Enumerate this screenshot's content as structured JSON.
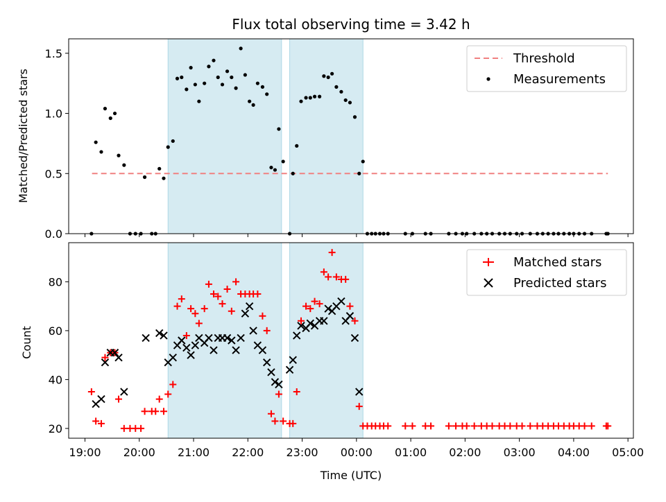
{
  "chart_data": [
    {
      "type": "scatter",
      "panel": "top",
      "title": "Flux total observing time = 3.42 h",
      "xlabel": "",
      "ylabel": "Matched/Predicted stars",
      "xlim_hours": [
        18.7,
        29.1
      ],
      "ylim": [
        0,
        1.62
      ],
      "yticks": [
        0.0,
        0.5,
        1.0,
        1.5
      ],
      "ytick_labels": [
        "0.0",
        "0.5",
        "1.0",
        "1.5"
      ],
      "threshold": {
        "label": "Threshold",
        "value": 0.5,
        "x_range_hours": [
          19.13,
          28.63
        ],
        "color": "#f08080"
      },
      "shaded_intervals_hours": [
        [
          20.53,
          22.62
        ],
        [
          22.77,
          24.12
        ]
      ],
      "legend": {
        "position": "upper right",
        "entries": [
          "Threshold",
          "Measurements"
        ]
      },
      "measurements_label": "Measurements",
      "measurements": [
        [
          19.12,
          0.0
        ],
        [
          19.2,
          0.76
        ],
        [
          19.3,
          0.68
        ],
        [
          19.37,
          1.04
        ],
        [
          19.47,
          0.96
        ],
        [
          19.55,
          1.0
        ],
        [
          19.62,
          0.65
        ],
        [
          19.72,
          0.57
        ],
        [
          19.83,
          0.0
        ],
        [
          19.93,
          0.0
        ],
        [
          20.03,
          0.0
        ],
        [
          20.1,
          0.47
        ],
        [
          20.23,
          0.0
        ],
        [
          20.3,
          0.0
        ],
        [
          20.37,
          0.54
        ],
        [
          20.45,
          0.46
        ],
        [
          20.53,
          0.72
        ],
        [
          20.62,
          0.77
        ],
        [
          20.7,
          1.29
        ],
        [
          20.78,
          1.3
        ],
        [
          20.87,
          1.2
        ],
        [
          20.95,
          1.38
        ],
        [
          21.03,
          1.24
        ],
        [
          21.1,
          1.1
        ],
        [
          21.2,
          1.25
        ],
        [
          21.28,
          1.39
        ],
        [
          21.37,
          1.44
        ],
        [
          21.45,
          1.3
        ],
        [
          21.53,
          1.24
        ],
        [
          21.62,
          1.35
        ],
        [
          21.7,
          1.3
        ],
        [
          21.78,
          1.21
        ],
        [
          21.87,
          1.54
        ],
        [
          21.95,
          1.32
        ],
        [
          22.03,
          1.1
        ],
        [
          22.1,
          1.07
        ],
        [
          22.18,
          1.25
        ],
        [
          22.27,
          1.22
        ],
        [
          22.35,
          1.16
        ],
        [
          22.43,
          0.55
        ],
        [
          22.5,
          0.53
        ],
        [
          22.57,
          0.87
        ],
        [
          22.65,
          0.6
        ],
        [
          22.77,
          0.0
        ],
        [
          22.83,
          0.5
        ],
        [
          22.9,
          0.73
        ],
        [
          22.98,
          1.1
        ],
        [
          23.07,
          1.13
        ],
        [
          23.15,
          1.13
        ],
        [
          23.23,
          1.14
        ],
        [
          23.32,
          1.14
        ],
        [
          23.4,
          1.31
        ],
        [
          23.48,
          1.3
        ],
        [
          23.55,
          1.33
        ],
        [
          23.63,
          1.22
        ],
        [
          23.72,
          1.18
        ],
        [
          23.8,
          1.11
        ],
        [
          23.88,
          1.09
        ],
        [
          23.97,
          0.97
        ],
        [
          24.05,
          0.5
        ],
        [
          24.12,
          0.6
        ],
        [
          24.2,
          0.0
        ],
        [
          24.28,
          0.0
        ],
        [
          24.35,
          0.0
        ],
        [
          24.43,
          0.0
        ],
        [
          24.5,
          0.0
        ],
        [
          24.58,
          0.0
        ],
        [
          24.9,
          0.0
        ],
        [
          25.03,
          0.0
        ],
        [
          25.27,
          0.0
        ],
        [
          25.37,
          0.0
        ],
        [
          25.7,
          0.0
        ],
        [
          25.83,
          0.0
        ],
        [
          25.95,
          0.0
        ],
        [
          26.03,
          0.0
        ],
        [
          26.17,
          0.0
        ],
        [
          26.3,
          0.0
        ],
        [
          26.4,
          0.0
        ],
        [
          26.5,
          0.0
        ],
        [
          26.63,
          0.0
        ],
        [
          26.73,
          0.0
        ],
        [
          26.83,
          0.0
        ],
        [
          26.95,
          0.0
        ],
        [
          27.05,
          0.0
        ],
        [
          27.2,
          0.0
        ],
        [
          27.33,
          0.0
        ],
        [
          27.43,
          0.0
        ],
        [
          27.53,
          0.0
        ],
        [
          27.63,
          0.0
        ],
        [
          27.72,
          0.0
        ],
        [
          27.82,
          0.0
        ],
        [
          27.92,
          0.0
        ],
        [
          28.0,
          0.0
        ],
        [
          28.1,
          0.0
        ],
        [
          28.2,
          0.0
        ],
        [
          28.33,
          0.0
        ],
        [
          28.6,
          0.0
        ],
        [
          28.63,
          0.0
        ]
      ]
    },
    {
      "type": "scatter",
      "panel": "bottom",
      "title": "",
      "xlabel": "Time (UTC)",
      "ylabel": "Count",
      "xlim_hours": [
        18.7,
        29.1
      ],
      "ylim": [
        16,
        96
      ],
      "yticks": [
        20,
        40,
        60,
        80
      ],
      "ytick_labels": [
        "20",
        "40",
        "60",
        "80"
      ],
      "xticks_hours": [
        19,
        20,
        21,
        22,
        23,
        24,
        25,
        26,
        27,
        28,
        29
      ],
      "xtick_labels": [
        "19:00",
        "20:00",
        "21:00",
        "22:00",
        "23:00",
        "00:00",
        "01:00",
        "02:00",
        "03:00",
        "04:00",
        "05:00"
      ],
      "shaded_intervals_hours": [
        [
          20.53,
          22.62
        ],
        [
          22.77,
          24.12
        ]
      ],
      "legend": {
        "position": "upper right",
        "entries": [
          "Matched stars",
          "Predicted stars"
        ]
      },
      "series": [
        {
          "name": "Matched stars",
          "marker": "plus",
          "color": "#ff0000",
          "points": [
            [
              19.12,
              35
            ],
            [
              19.2,
              23
            ],
            [
              19.3,
              22
            ],
            [
              19.37,
              49
            ],
            [
              19.47,
              51
            ],
            [
              19.55,
              51
            ],
            [
              19.62,
              32
            ],
            [
              19.72,
              20
            ],
            [
              19.83,
              20
            ],
            [
              19.93,
              20
            ],
            [
              20.03,
              20
            ],
            [
              20.1,
              27
            ],
            [
              20.23,
              27
            ],
            [
              20.3,
              27
            ],
            [
              20.37,
              32
            ],
            [
              20.45,
              27
            ],
            [
              20.53,
              34
            ],
            [
              20.62,
              38
            ],
            [
              20.7,
              70
            ],
            [
              20.78,
              73
            ],
            [
              20.87,
              58
            ],
            [
              20.95,
              69
            ],
            [
              21.03,
              67
            ],
            [
              21.1,
              63
            ],
            [
              21.2,
              69
            ],
            [
              21.28,
              79
            ],
            [
              21.37,
              75
            ],
            [
              21.45,
              74
            ],
            [
              21.53,
              71
            ],
            [
              21.62,
              77
            ],
            [
              21.7,
              68
            ],
            [
              21.78,
              80
            ],
            [
              21.87,
              75
            ],
            [
              21.95,
              75
            ],
            [
              22.03,
              75
            ],
            [
              22.1,
              75
            ],
            [
              22.18,
              75
            ],
            [
              22.27,
              66
            ],
            [
              22.35,
              60
            ],
            [
              22.43,
              26
            ],
            [
              22.5,
              23
            ],
            [
              22.57,
              34
            ],
            [
              22.65,
              23
            ],
            [
              22.77,
              22
            ],
            [
              22.83,
              22
            ],
            [
              22.9,
              35
            ],
            [
              22.98,
              64
            ],
            [
              23.07,
              70
            ],
            [
              23.15,
              69
            ],
            [
              23.23,
              72
            ],
            [
              23.32,
              71
            ],
            [
              23.4,
              84
            ],
            [
              23.48,
              82
            ],
            [
              23.55,
              92
            ],
            [
              23.63,
              82
            ],
            [
              23.72,
              81
            ],
            [
              23.8,
              81
            ],
            [
              23.88,
              70
            ],
            [
              23.97,
              64
            ],
            [
              24.05,
              29
            ],
            [
              24.12,
              21
            ],
            [
              24.2,
              21
            ],
            [
              24.28,
              21
            ],
            [
              24.35,
              21
            ],
            [
              24.43,
              21
            ],
            [
              24.5,
              21
            ],
            [
              24.58,
              21
            ],
            [
              24.9,
              21
            ],
            [
              25.03,
              21
            ],
            [
              25.27,
              21
            ],
            [
              25.37,
              21
            ],
            [
              25.7,
              21
            ],
            [
              25.83,
              21
            ],
            [
              25.95,
              21
            ],
            [
              26.03,
              21
            ],
            [
              26.17,
              21
            ],
            [
              26.3,
              21
            ],
            [
              26.4,
              21
            ],
            [
              26.5,
              21
            ],
            [
              26.63,
              21
            ],
            [
              26.73,
              21
            ],
            [
              26.83,
              21
            ],
            [
              26.95,
              21
            ],
            [
              27.05,
              21
            ],
            [
              27.2,
              21
            ],
            [
              27.33,
              21
            ],
            [
              27.43,
              21
            ],
            [
              27.53,
              21
            ],
            [
              27.63,
              21
            ],
            [
              27.72,
              21
            ],
            [
              27.82,
              21
            ],
            [
              27.92,
              21
            ],
            [
              28.0,
              21
            ],
            [
              28.1,
              21
            ],
            [
              28.2,
              21
            ],
            [
              28.33,
              21
            ],
            [
              28.6,
              21
            ],
            [
              28.63,
              21
            ]
          ]
        },
        {
          "name": "Predicted stars",
          "marker": "x",
          "color": "#000000",
          "points": [
            [
              19.2,
              30
            ],
            [
              19.3,
              32
            ],
            [
              19.37,
              47
            ],
            [
              19.47,
              51
            ],
            [
              19.55,
              51
            ],
            [
              19.62,
              49
            ],
            [
              19.72,
              35
            ],
            [
              20.12,
              57
            ],
            [
              20.37,
              59
            ],
            [
              20.45,
              58
            ],
            [
              20.53,
              47
            ],
            [
              20.62,
              49
            ],
            [
              20.7,
              54
            ],
            [
              20.78,
              56
            ],
            [
              20.87,
              53
            ],
            [
              20.95,
              50
            ],
            [
              21.03,
              54
            ],
            [
              21.1,
              57
            ],
            [
              21.2,
              55
            ],
            [
              21.28,
              57
            ],
            [
              21.37,
              52
            ],
            [
              21.45,
              57
            ],
            [
              21.53,
              57
            ],
            [
              21.62,
              57
            ],
            [
              21.7,
              56
            ],
            [
              21.78,
              52
            ],
            [
              21.87,
              57
            ],
            [
              21.95,
              67
            ],
            [
              22.03,
              70
            ],
            [
              22.1,
              60
            ],
            [
              22.18,
              54
            ],
            [
              22.27,
              52
            ],
            [
              22.35,
              47
            ],
            [
              22.43,
              43
            ],
            [
              22.5,
              39
            ],
            [
              22.57,
              38
            ],
            [
              22.77,
              44
            ],
            [
              22.83,
              48
            ],
            [
              22.9,
              58
            ],
            [
              22.98,
              62
            ],
            [
              23.07,
              61
            ],
            [
              23.15,
              63
            ],
            [
              23.23,
              62
            ],
            [
              23.32,
              64
            ],
            [
              23.4,
              64
            ],
            [
              23.48,
              69
            ],
            [
              23.55,
              68
            ],
            [
              23.63,
              70
            ],
            [
              23.72,
              72
            ],
            [
              23.8,
              64
            ],
            [
              23.88,
              66
            ],
            [
              23.97,
              57
            ],
            [
              24.05,
              35
            ]
          ]
        }
      ]
    }
  ]
}
